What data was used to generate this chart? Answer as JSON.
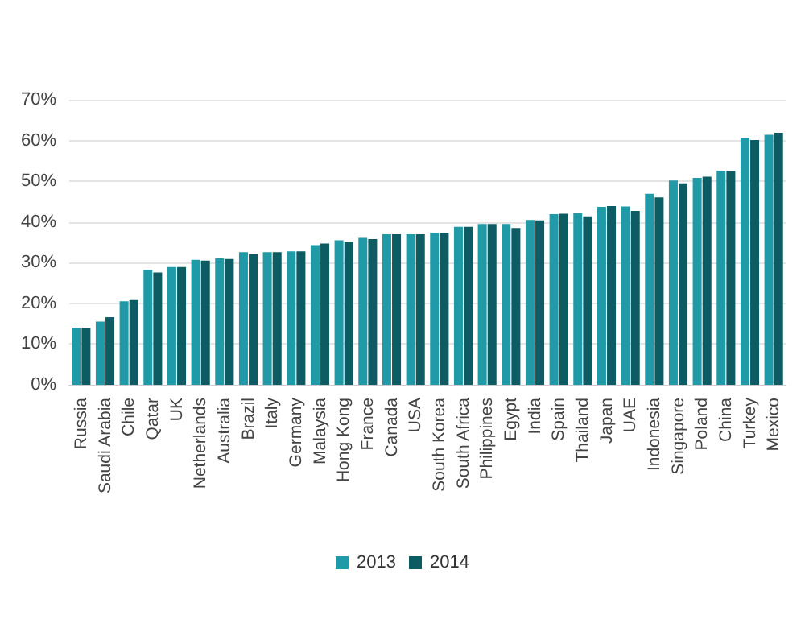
{
  "chart_data": {
    "type": "bar",
    "categories": [
      "Russia",
      "Saudi Arabia",
      "Chile",
      "Qatar",
      "UK",
      "Netherlands",
      "Australia",
      "Brazil",
      "Italy",
      "Germany",
      "Malaysia",
      "Hong Kong",
      "France",
      "Canada",
      "USA",
      "South Korea",
      "South Africa",
      "Philippines",
      "Egypt",
      "India",
      "Spain",
      "Thailand",
      "Japan",
      "UAE",
      "Indonesia",
      "Singapore",
      "Poland",
      "China",
      "Turkey",
      "Mexico"
    ],
    "series": [
      {
        "name": "2013",
        "color": "#1f9aa6",
        "values": [
          14.0,
          15.5,
          20.5,
          28.2,
          28.9,
          30.7,
          31.1,
          32.6,
          32.6,
          32.8,
          34.3,
          35.5,
          36.1,
          37.0,
          37.0,
          37.3,
          38.8,
          39.5,
          39.5,
          40.5,
          41.9,
          42.2,
          43.7,
          43.8,
          46.9,
          50.2,
          50.8,
          52.6,
          60.7,
          61.4
        ]
      },
      {
        "name": "2014",
        "color": "#0d5c63",
        "values": [
          14.0,
          16.6,
          20.8,
          27.6,
          28.9,
          30.5,
          30.9,
          32.1,
          32.6,
          32.8,
          34.7,
          35.1,
          35.8,
          37.0,
          37.0,
          37.3,
          38.8,
          39.5,
          38.5,
          40.4,
          42.0,
          41.4,
          43.9,
          42.7,
          46.0,
          49.5,
          51.1,
          52.6,
          60.1,
          61.9
        ]
      }
    ],
    "ylim": [
      0,
      70
    ],
    "yticks": [
      {
        "value": 0,
        "label": "0%"
      },
      {
        "value": 10,
        "label": "10%"
      },
      {
        "value": 20,
        "label": "20%"
      },
      {
        "value": 30,
        "label": "30%"
      },
      {
        "value": 40,
        "label": "40%"
      },
      {
        "value": 50,
        "label": "50%"
      },
      {
        "value": 60,
        "label": "60%"
      },
      {
        "value": 70,
        "label": "70%"
      }
    ],
    "grid": "y",
    "legend": "bottom"
  }
}
